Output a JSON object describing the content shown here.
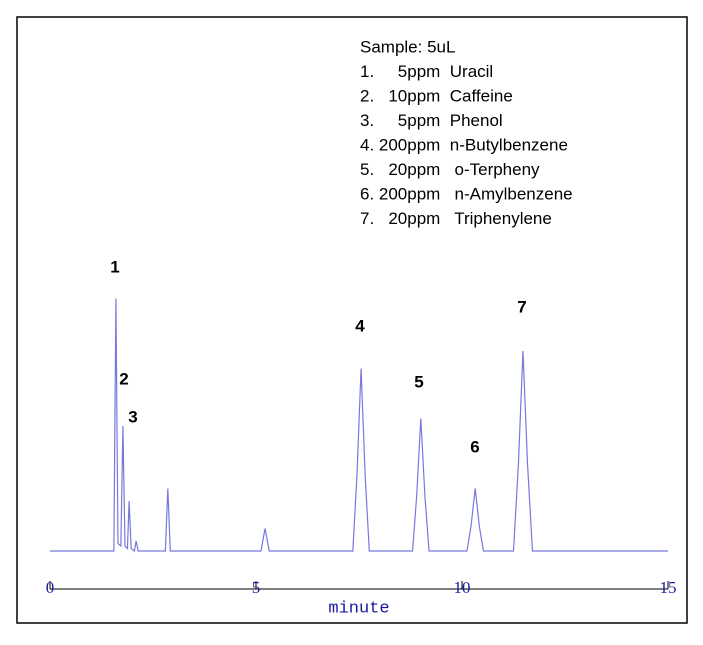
{
  "chart_data": {
    "type": "line",
    "legend_text": [
      "Sample: 5uL",
      "1.     5ppm  Uracil",
      "2.   10ppm  Caffeine",
      "3.     5ppm  Phenol",
      "4. 200ppm  n-Butylbenzene",
      "5.   20ppm   o-Terpheny",
      "6. 200ppm   n-Amylbenzene",
      "7.   20ppm   Triphenylene"
    ],
    "annotations": [
      "1",
      "2",
      "3",
      "4",
      "5",
      "6",
      "7"
    ],
    "x_label": "minute",
    "xlim": [
      0,
      15
    ],
    "xticks": [
      0,
      5,
      10,
      15
    ],
    "ylim": [
      0,
      110
    ],
    "color": "#7878dc",
    "x": [
      0,
      1.55,
      1.6,
      1.65,
      1.72,
      1.77,
      1.82,
      1.88,
      1.92,
      1.97,
      2.05,
      2.09,
      2.14,
      2.8,
      2.86,
      2.92,
      5.12,
      5.22,
      5.32,
      7.35,
      7.45,
      7.55,
      7.65,
      7.75,
      8.8,
      8.9,
      9.0,
      9.1,
      9.2,
      10.12,
      10.22,
      10.32,
      10.42,
      10.52,
      11.25,
      11.37,
      11.48,
      11.59,
      11.71,
      15
    ],
    "values": [
      0,
      0,
      101,
      3,
      2,
      50,
      2,
      1,
      20,
      1,
      0,
      4,
      0,
      0,
      25,
      0,
      0,
      9,
      0,
      0,
      30,
      73,
      30,
      0,
      0,
      22,
      53,
      22,
      0,
      0,
      10,
      25,
      10,
      0,
      0,
      35,
      80,
      35,
      0,
      0
    ]
  }
}
